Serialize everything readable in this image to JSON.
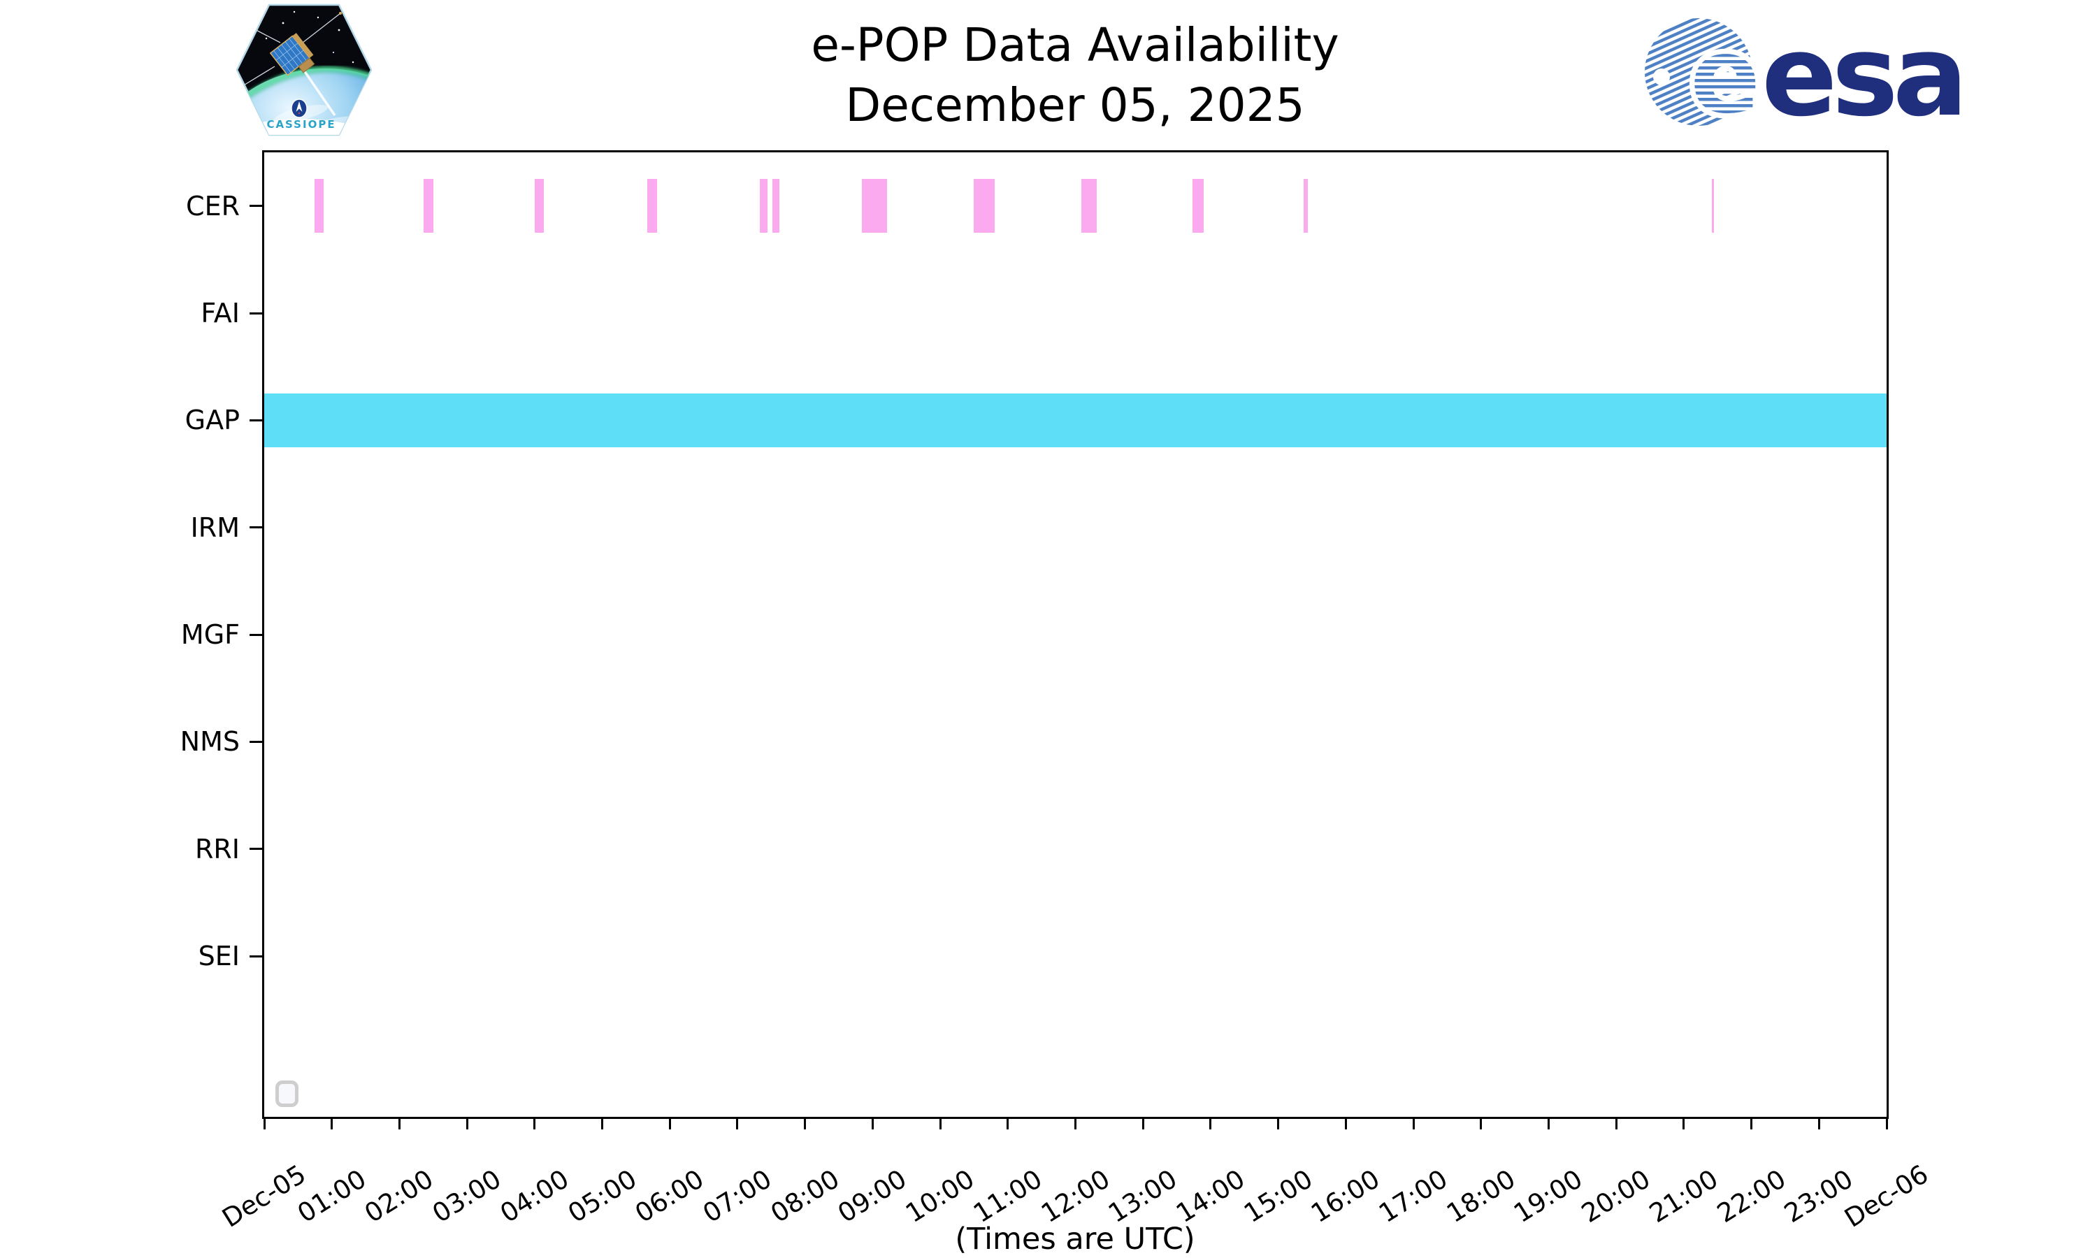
{
  "header": {
    "title_line1": "e-POP Data Availability",
    "title_line2": "December 05, 2025"
  },
  "logos": {
    "cassiope_label": "CASSIOPE",
    "esa_e": "e",
    "esa_wordmark": "esa"
  },
  "footer_note": "(Times are UTC)",
  "legend": {
    "items": []
  },
  "chart_data": {
    "type": "availability_timeline",
    "title": "e-POP Data Availability",
    "subtitle": "December 05, 2025",
    "xlabel": "(Times are UTC)",
    "grid": false,
    "legend_position": "lower-left (empty box)",
    "x_axis": {
      "range_hours": [
        0,
        24
      ],
      "tick_interval_hours": 1,
      "tick_label_rotation_deg": 32,
      "tick_labels": [
        "Dec-05",
        "01:00",
        "02:00",
        "03:00",
        "04:00",
        "05:00",
        "06:00",
        "07:00",
        "08:00",
        "09:00",
        "10:00",
        "11:00",
        "12:00",
        "13:00",
        "14:00",
        "15:00",
        "16:00",
        "17:00",
        "18:00",
        "19:00",
        "20:00",
        "21:00",
        "22:00",
        "23:00",
        "Dec-06"
      ]
    },
    "y_axis": {
      "instruments": [
        "CER",
        "FAI",
        "GAP",
        "IRM",
        "MGF",
        "NMS",
        "RRI",
        "SEI"
      ]
    },
    "series": [
      {
        "instrument": "CER",
        "color": "#fbaaf0",
        "intervals_hours_utc": [
          [
            0.74,
            0.88
          ],
          [
            2.36,
            2.5
          ],
          [
            4.0,
            4.14
          ],
          [
            5.67,
            5.81
          ],
          [
            7.33,
            7.45
          ],
          [
            7.52,
            7.62
          ],
          [
            8.84,
            9.21
          ],
          [
            10.5,
            10.81
          ],
          [
            12.09,
            12.32
          ],
          [
            13.73,
            13.9
          ],
          [
            15.38,
            15.44
          ],
          [
            21.41,
            21.45
          ]
        ]
      },
      {
        "instrument": "FAI",
        "color": null,
        "intervals_hours_utc": []
      },
      {
        "instrument": "GAP",
        "color": "#5fdef8",
        "intervals_hours_utc": [
          [
            0,
            24
          ]
        ]
      },
      {
        "instrument": "IRM",
        "color": null,
        "intervals_hours_utc": []
      },
      {
        "instrument": "MGF",
        "color": null,
        "intervals_hours_utc": []
      },
      {
        "instrument": "NMS",
        "color": null,
        "intervals_hours_utc": []
      },
      {
        "instrument": "RRI",
        "color": null,
        "intervals_hours_utc": []
      },
      {
        "instrument": "SEI",
        "color": null,
        "intervals_hours_utc": []
      }
    ]
  }
}
